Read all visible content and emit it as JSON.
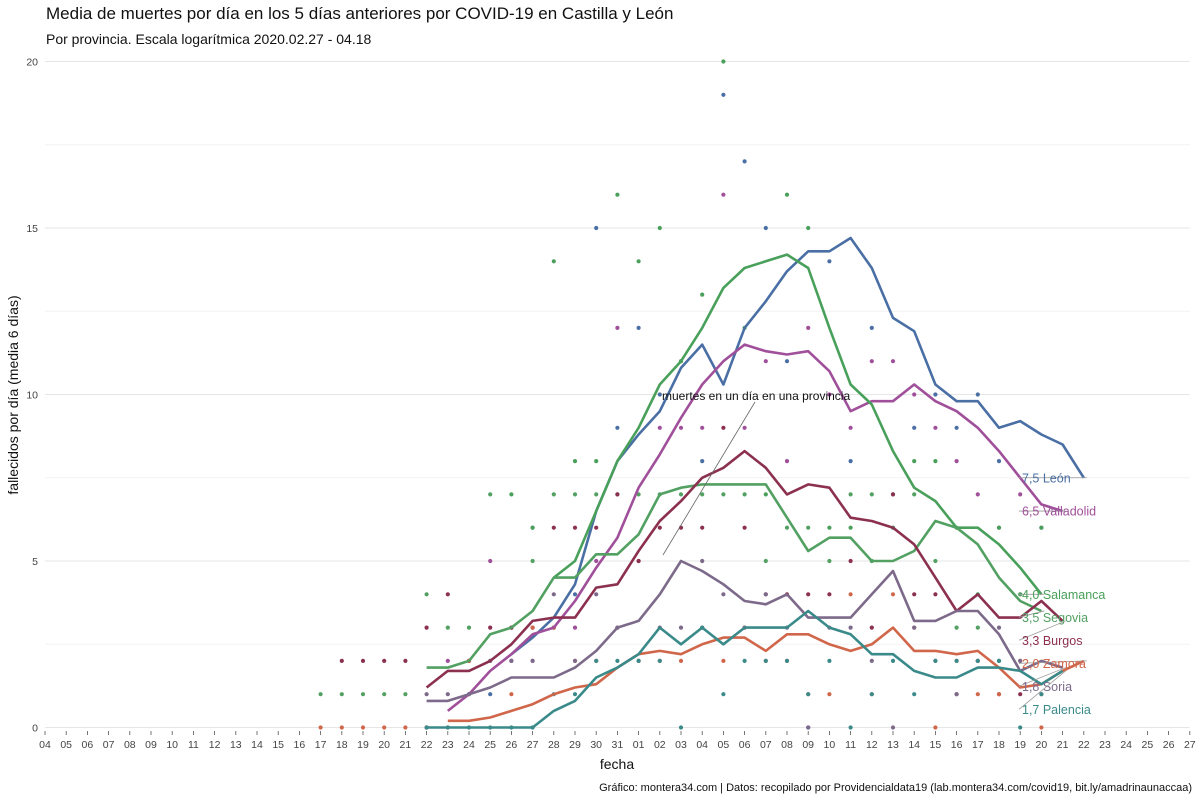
{
  "chart_data": {
    "type": "line",
    "title": "Media de muertes por día en los 5 días anteriores por COVID-19 en Castilla y León",
    "subtitle": "Por provincia. Escala logarítmica  2020.02.27 - 04.18",
    "xlabel": "fecha",
    "ylabel": "fallecidos por día (media 6 días)",
    "ylim": [
      0,
      20
    ],
    "yticks": [
      0,
      5,
      10,
      15,
      20
    ],
    "x_tick_labels": [
      "04",
      "05",
      "06",
      "07",
      "08",
      "09",
      "10",
      "11",
      "12",
      "13",
      "14",
      "15",
      "16",
      "17",
      "18",
      "19",
      "20",
      "21",
      "22",
      "23",
      "24",
      "25",
      "26",
      "27",
      "28",
      "29",
      "30",
      "31",
      "01",
      "02",
      "03",
      "04",
      "05",
      "06",
      "07",
      "08",
      "09",
      "10",
      "11",
      "12",
      "13",
      "14",
      "15",
      "16",
      "17",
      "18",
      "19",
      "20",
      "21",
      "22",
      "23",
      "24",
      "25",
      "26",
      "27"
    ],
    "grid": "horizontal",
    "legend": "end-of-line labels",
    "annotation": "muertes en un día en una provincia",
    "source": "Gráfico: montera34.com | Datos: recopilado por Providencialdata19 (lab.montera34.com/covid19, bit.ly/amadrinaunaccaa)",
    "series": [
      {
        "name": "León",
        "end_label": "7,5 León",
        "color": "#4a6fa5",
        "line_start": 22,
        "values": [
          2.2,
          2.7,
          3.3,
          4.3,
          6.5,
          8.0,
          8.8,
          9.5,
          10.8,
          11.5,
          10.3,
          12.0,
          12.8,
          13.7,
          14.3,
          14.3,
          14.7,
          13.8,
          12.3,
          11.9,
          10.3,
          9.8,
          9.8,
          9.0,
          9.2,
          8.8,
          8.5,
          7.5
        ],
        "points": [
          [
            20,
            1
          ],
          [
            21,
            1
          ],
          [
            22,
            2
          ],
          [
            23,
            6
          ],
          [
            24,
            3
          ],
          [
            25,
            4
          ],
          [
            26,
            15
          ],
          [
            27,
            9
          ],
          [
            28,
            12
          ],
          [
            29,
            10
          ],
          [
            30,
            11
          ],
          [
            31,
            8
          ],
          [
            32,
            19
          ],
          [
            33,
            17
          ],
          [
            34,
            15
          ],
          [
            35,
            11
          ],
          [
            36,
            0
          ],
          [
            37,
            14
          ],
          [
            38,
            8
          ],
          [
            39,
            12
          ],
          [
            40,
            6
          ],
          [
            41,
            9
          ],
          [
            42,
            10
          ],
          [
            43,
            9
          ],
          [
            44,
            10
          ],
          [
            45,
            8
          ]
        ]
      },
      {
        "name": "Valladolid",
        "end_label": "6,5 Valladolid",
        "color": "#a0509a",
        "line_start": 19,
        "values": [
          0.5,
          1.0,
          1.7,
          2.2,
          2.8,
          3.0,
          3.8,
          4.8,
          5.7,
          7.2,
          8.2,
          9.3,
          10.3,
          11.0,
          11.5,
          11.3,
          11.2,
          11.3,
          10.7,
          9.5,
          9.8,
          9.8,
          10.3,
          9.8,
          9.5,
          9.0,
          8.3,
          7.5,
          6.7,
          6.5
        ],
        "points": [
          [
            18,
            0
          ],
          [
            19,
            2
          ],
          [
            20,
            2
          ],
          [
            21,
            5
          ],
          [
            22,
            2
          ],
          [
            23,
            2
          ],
          [
            24,
            3
          ],
          [
            25,
            3
          ],
          [
            26,
            5
          ],
          [
            27,
            12
          ],
          [
            28,
            5
          ],
          [
            29,
            9
          ],
          [
            30,
            9
          ],
          [
            31,
            9
          ],
          [
            32,
            16
          ],
          [
            33,
            9
          ],
          [
            34,
            11
          ],
          [
            35,
            8
          ],
          [
            36,
            12
          ],
          [
            37,
            10
          ],
          [
            38,
            9
          ],
          [
            39,
            11
          ],
          [
            40,
            11
          ],
          [
            41,
            10
          ],
          [
            42,
            9
          ],
          [
            43,
            8
          ],
          [
            44,
            7
          ],
          [
            45,
            6
          ],
          [
            46,
            7
          ],
          [
            47,
            6
          ]
        ]
      },
      {
        "name": "Salamanca",
        "end_label": "4,0 Salamanca",
        "color": "#49a05a",
        "line_start": 24,
        "values": [
          4.5,
          5.0,
          6.5,
          8.0,
          9.0,
          10.3,
          11.0,
          12.0,
          13.2,
          13.8,
          14.0,
          14.2,
          13.8,
          12.0,
          10.3,
          9.7,
          8.3,
          7.2,
          6.8,
          6.0,
          6.0,
          5.5,
          4.8,
          4.0
        ],
        "points": [
          [
            22,
            7
          ],
          [
            23,
            6
          ],
          [
            24,
            14
          ],
          [
            25,
            8
          ],
          [
            26,
            8
          ],
          [
            27,
            16
          ],
          [
            28,
            14
          ],
          [
            29,
            15
          ],
          [
            30,
            11
          ],
          [
            31,
            13
          ],
          [
            32,
            20
          ],
          [
            33,
            12
          ],
          [
            34,
            7
          ],
          [
            35,
            16
          ],
          [
            36,
            15
          ],
          [
            37,
            6
          ],
          [
            38,
            6
          ],
          [
            39,
            5
          ],
          [
            40,
            7
          ],
          [
            41,
            8
          ],
          [
            42,
            8
          ],
          [
            43,
            6
          ],
          [
            44,
            4
          ],
          [
            45,
            6
          ],
          [
            46,
            4
          ],
          [
            47,
            6
          ]
        ]
      },
      {
        "name": "Segovia",
        "end_label": "3,5 Segovia",
        "color": "#52a062",
        "line_start": 18,
        "values": [
          1.8,
          1.8,
          2.0,
          2.8,
          3.0,
          3.5,
          4.5,
          4.5,
          5.2,
          5.2,
          5.8,
          7.0,
          7.2,
          7.3,
          7.3,
          7.3,
          7.3,
          6.3,
          5.3,
          5.7,
          5.7,
          5.0,
          5.0,
          5.3,
          6.2,
          6.0,
          5.5,
          4.5,
          3.8,
          3.5
        ],
        "points": [
          [
            13,
            1
          ],
          [
            14,
            1
          ],
          [
            15,
            1
          ],
          [
            16,
            1
          ],
          [
            17,
            1
          ],
          [
            18,
            4
          ],
          [
            19,
            3
          ],
          [
            20,
            3
          ],
          [
            21,
            7
          ],
          [
            22,
            3
          ],
          [
            23,
            5
          ],
          [
            24,
            7
          ],
          [
            25,
            7
          ],
          [
            26,
            7
          ],
          [
            27,
            7
          ],
          [
            28,
            7
          ],
          [
            29,
            7
          ],
          [
            30,
            7
          ],
          [
            31,
            7
          ],
          [
            32,
            7
          ],
          [
            33,
            7
          ],
          [
            34,
            5
          ],
          [
            35,
            6
          ],
          [
            36,
            6
          ],
          [
            37,
            5
          ],
          [
            38,
            7
          ],
          [
            39,
            7
          ],
          [
            40,
            6
          ],
          [
            41,
            7
          ],
          [
            42,
            5
          ],
          [
            43,
            3
          ],
          [
            44,
            3
          ],
          [
            45,
            2
          ],
          [
            46,
            4
          ]
        ]
      },
      {
        "name": "Burgos",
        "end_label": "3,3 Burgos",
        "color": "#8c3050",
        "line_start": 18,
        "values": [
          1.2,
          1.7,
          1.7,
          2.0,
          2.5,
          3.2,
          3.3,
          3.3,
          4.2,
          4.3,
          5.3,
          6.2,
          6.8,
          7.5,
          7.8,
          8.3,
          7.8,
          7.0,
          7.3,
          7.2,
          6.3,
          6.2,
          6.0,
          5.5,
          4.5,
          3.5,
          4.0,
          3.3,
          3.3,
          3.8,
          3.2
        ],
        "points": [
          [
            14,
            2
          ],
          [
            15,
            2
          ],
          [
            16,
            2
          ],
          [
            17,
            2
          ],
          [
            18,
            3
          ],
          [
            19,
            4
          ],
          [
            20,
            2
          ],
          [
            21,
            3
          ],
          [
            22,
            3
          ],
          [
            23,
            3
          ],
          [
            24,
            6
          ],
          [
            25,
            6
          ],
          [
            26,
            6
          ],
          [
            27,
            7
          ],
          [
            28,
            5
          ],
          [
            29,
            6
          ],
          [
            30,
            6
          ],
          [
            31,
            6
          ],
          [
            32,
            9
          ],
          [
            33,
            6
          ],
          [
            34,
            4
          ],
          [
            35,
            4
          ],
          [
            36,
            4
          ],
          [
            37,
            4
          ],
          [
            38,
            5
          ],
          [
            39,
            3
          ],
          [
            40,
            7
          ],
          [
            41,
            4
          ],
          [
            42,
            4
          ],
          [
            43,
            1
          ],
          [
            44,
            2
          ],
          [
            45,
            1
          ],
          [
            46,
            1
          ],
          [
            47,
            1
          ]
        ]
      },
      {
        "name": "Zamora",
        "end_label": "2,0 Zamora",
        "color": "#d0664a",
        "line_start": 19,
        "values": [
          0.2,
          0.2,
          0.3,
          0.5,
          0.7,
          1.0,
          1.2,
          1.3,
          1.8,
          2.2,
          2.3,
          2.2,
          2.5,
          2.7,
          2.7,
          2.3,
          2.8,
          2.8,
          2.5,
          2.3,
          2.5,
          3.0,
          2.3,
          2.3,
          2.2,
          2.3,
          1.8,
          1.2,
          1.3,
          1.7,
          2.0
        ],
        "points": [
          [
            13,
            0
          ],
          [
            14,
            0
          ],
          [
            15,
            0
          ],
          [
            16,
            0
          ],
          [
            17,
            0
          ],
          [
            18,
            0
          ],
          [
            19,
            0
          ],
          [
            20,
            2
          ],
          [
            21,
            2
          ],
          [
            22,
            1
          ],
          [
            23,
            3
          ],
          [
            24,
            3
          ],
          [
            25,
            2
          ],
          [
            26,
            2
          ],
          [
            27,
            3
          ],
          [
            28,
            2
          ],
          [
            29,
            2
          ],
          [
            30,
            2
          ],
          [
            31,
            3
          ],
          [
            32,
            2
          ],
          [
            33,
            3
          ],
          [
            34,
            2
          ],
          [
            35,
            2
          ],
          [
            36,
            1
          ],
          [
            37,
            1
          ],
          [
            38,
            4
          ],
          [
            39,
            1
          ],
          [
            40,
            4
          ],
          [
            41,
            3
          ],
          [
            42,
            0
          ],
          [
            43,
            2
          ],
          [
            44,
            1
          ],
          [
            45,
            1
          ],
          [
            46,
            2
          ],
          [
            47,
            0
          ]
        ]
      },
      {
        "name": "Soria",
        "end_label": "1,8 Soria",
        "color": "#7d6a8a",
        "line_start": 18,
        "values": [
          0.8,
          0.8,
          1.0,
          1.2,
          1.5,
          1.5,
          1.5,
          1.8,
          2.3,
          3.0,
          3.2,
          4.0,
          5.0,
          4.7,
          4.3,
          3.8,
          3.7,
          4.0,
          3.3,
          3.3,
          3.3,
          4.0,
          4.7,
          3.2,
          3.2,
          3.5,
          3.5,
          2.8,
          1.7,
          2.0,
          1.8
        ],
        "points": [
          [
            18,
            1
          ],
          [
            19,
            1
          ],
          [
            20,
            1
          ],
          [
            21,
            2
          ],
          [
            22,
            2
          ],
          [
            23,
            2
          ],
          [
            24,
            4
          ],
          [
            25,
            2
          ],
          [
            26,
            4
          ],
          [
            27,
            3
          ],
          [
            28,
            2
          ],
          [
            29,
            3
          ],
          [
            30,
            3
          ],
          [
            31,
            5
          ],
          [
            32,
            4
          ],
          [
            33,
            3
          ],
          [
            34,
            4
          ],
          [
            35,
            3
          ],
          [
            36,
            0
          ],
          [
            37,
            3
          ],
          [
            38,
            3
          ],
          [
            39,
            2
          ],
          [
            40,
            0
          ],
          [
            41,
            3
          ],
          [
            42,
            2
          ],
          [
            43,
            1
          ],
          [
            44,
            2
          ],
          [
            45,
            3
          ],
          [
            46,
            2
          ]
        ]
      },
      {
        "name": "Palencia",
        "end_label": "1,7 Palencia",
        "color": "#3a8a8a",
        "line_start": 18,
        "values": [
          0.0,
          0.0,
          0.0,
          0.0,
          0.0,
          0.0,
          0.5,
          0.8,
          1.5,
          1.8,
          2.2,
          3.0,
          2.5,
          3.0,
          2.5,
          3.0,
          3.0,
          3.0,
          3.5,
          3.0,
          2.8,
          2.2,
          2.2,
          1.7,
          1.5,
          1.5,
          1.8,
          1.8,
          1.7,
          1.3,
          1.7
        ],
        "points": [
          [
            18,
            0
          ],
          [
            19,
            0
          ],
          [
            20,
            0
          ],
          [
            21,
            0
          ],
          [
            22,
            0
          ],
          [
            23,
            0
          ],
          [
            24,
            1
          ],
          [
            25,
            1
          ],
          [
            26,
            2
          ],
          [
            27,
            2
          ],
          [
            28,
            2
          ],
          [
            29,
            2
          ],
          [
            30,
            0
          ],
          [
            31,
            3
          ],
          [
            32,
            1
          ],
          [
            33,
            2
          ],
          [
            34,
            2
          ],
          [
            35,
            2
          ],
          [
            36,
            1
          ],
          [
            37,
            2
          ],
          [
            38,
            0
          ],
          [
            39,
            1
          ],
          [
            40,
            2
          ],
          [
            41,
            1
          ],
          [
            42,
            2
          ],
          [
            43,
            2
          ],
          [
            44,
            2
          ],
          [
            45,
            2
          ],
          [
            46,
            0
          ],
          [
            47,
            1
          ]
        ]
      }
    ]
  }
}
